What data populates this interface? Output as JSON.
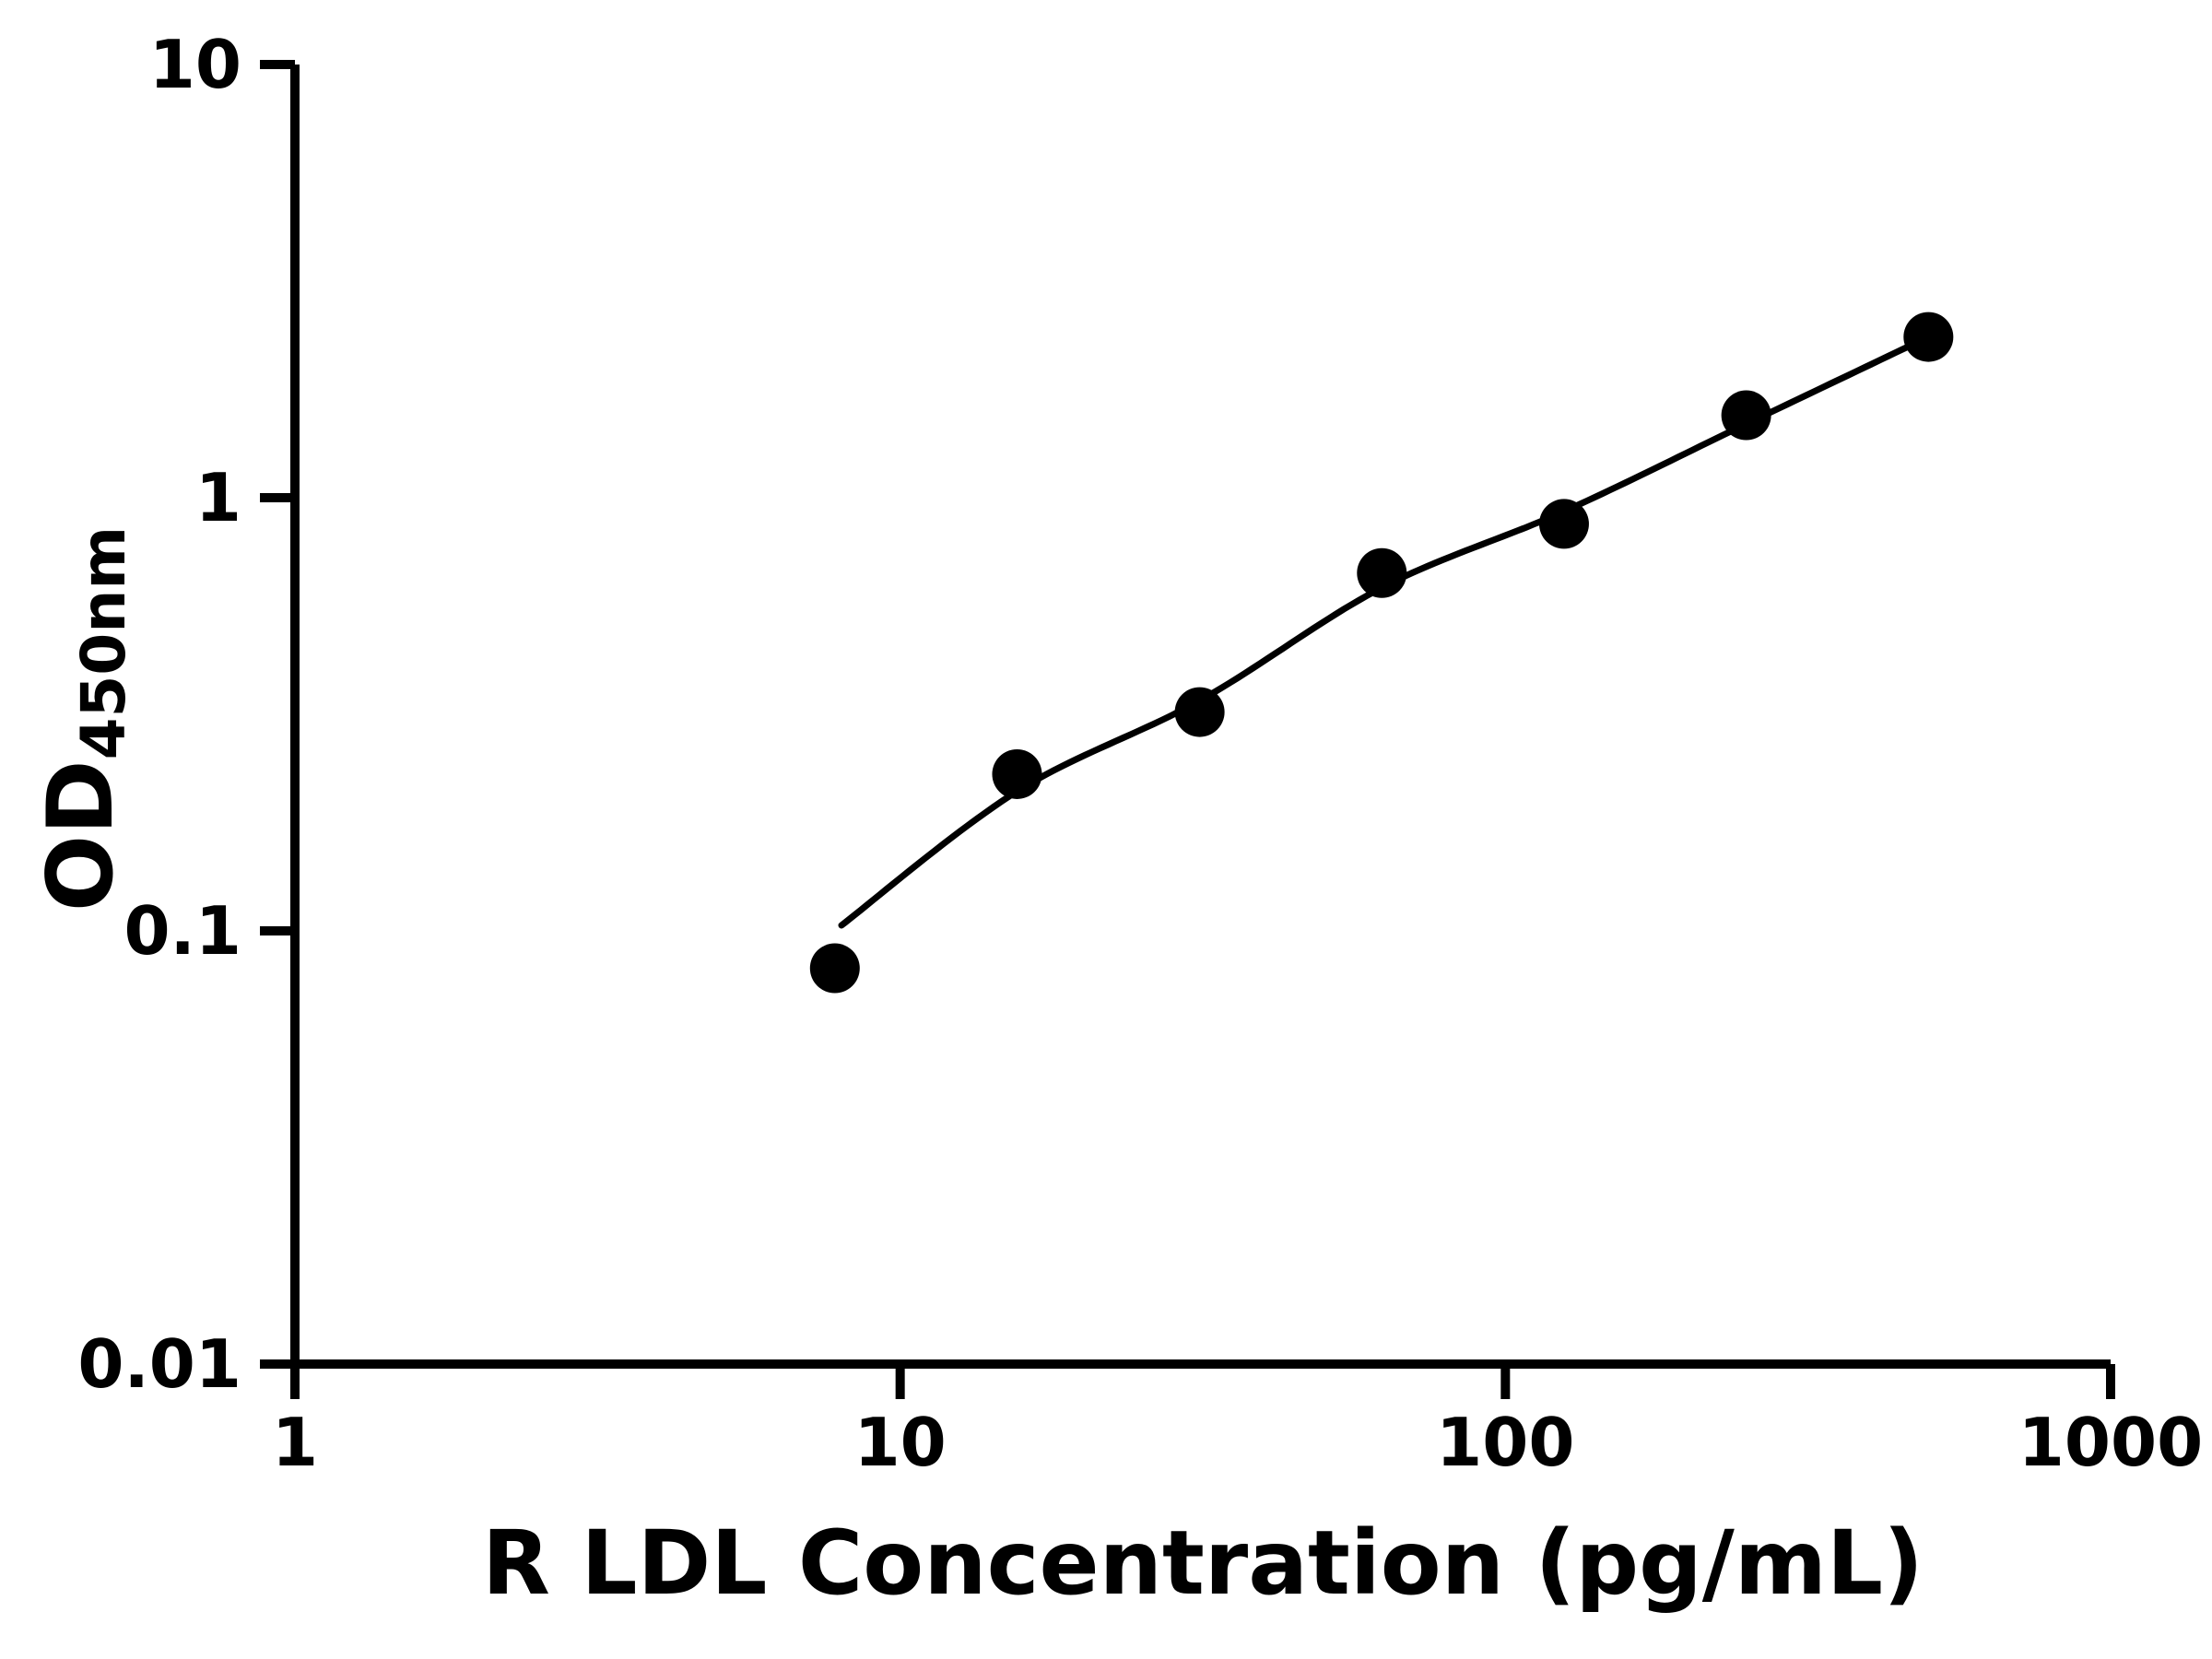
{
  "chart_data": {
    "type": "scatter",
    "title": "",
    "xlabel": "R LDL Concentration (pg/mL)",
    "ylabel_main": "OD",
    "ylabel_sub": "450nm",
    "xscale": "log",
    "yscale": "log",
    "xlim": [
      1,
      1000
    ],
    "ylim": [
      0.01,
      10
    ],
    "x_tick_labels": [
      "1",
      "10",
      "100",
      "1000"
    ],
    "x_tick_values": [
      1,
      10,
      100,
      1000
    ],
    "y_tick_labels": [
      "0.01",
      "0.1",
      "1",
      "10"
    ],
    "y_tick_values": [
      0.01,
      0.1,
      1,
      10
    ],
    "grid": false,
    "legend": "none",
    "points": {
      "x": [
        7.8,
        15.6,
        31.25,
        62.5,
        125,
        250,
        500
      ],
      "y": [
        0.082,
        0.23,
        0.32,
        0.67,
        0.87,
        1.55,
        2.35
      ]
    },
    "fit_curve": {
      "x": [
        8,
        15.6,
        31.25,
        62.5,
        125,
        250,
        500
      ],
      "y": [
        0.103,
        0.21,
        0.34,
        0.62,
        0.93,
        1.48,
        2.35
      ]
    },
    "marker_color": "#000000",
    "line_color": "#000000",
    "axis_color": "#000000",
    "background": "#ffffff"
  }
}
